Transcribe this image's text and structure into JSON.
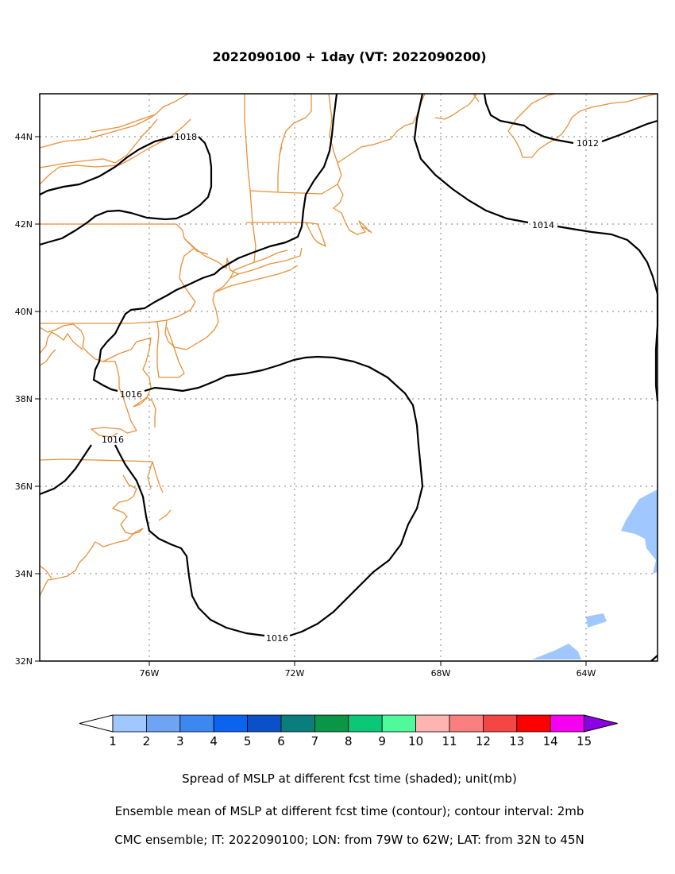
{
  "title": "2022090100 + 1day (VT: 2022090200)",
  "axes": {
    "lon_ticks": [
      "76W",
      "72W",
      "68W",
      "64W"
    ],
    "lat_ticks": [
      "44N",
      "42N",
      "40N",
      "38N",
      "36N",
      "34N",
      "32N"
    ]
  },
  "contours": {
    "labels": [
      "1018",
      "1016",
      "1016",
      "1016",
      "1014",
      "1012"
    ]
  },
  "colorbar": {
    "ticks": [
      "1",
      "2",
      "3",
      "4",
      "5",
      "6",
      "7",
      "8",
      "9",
      "10",
      "11",
      "12",
      "13",
      "14",
      "15"
    ],
    "colors": [
      "#a0c8ff",
      "#6fa4f5",
      "#3c87f0",
      "#0a64f0",
      "#0a50c8",
      "#0a7d7d",
      "#0a9646",
      "#0ac878",
      "#50fa9b",
      "#ffb4b4",
      "#fa8080",
      "#f54646",
      "#ff0000",
      "#f500f0",
      "#8c00e6"
    ]
  },
  "captions": [
    "Spread of MSLP at different fcst time (shaded); unit(mb)",
    "Ensemble mean of MSLP at different fcst time (contour); contour interval: 2mb",
    "CMC ensemble; IT: 2022090100; LON: from 79W to 62W; LAT: from 32N to 45N"
  ]
}
